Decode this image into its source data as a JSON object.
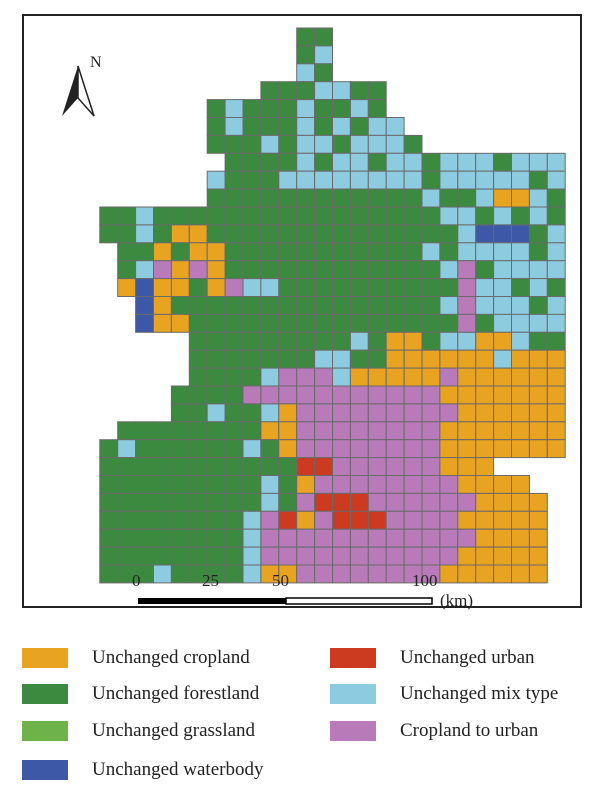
{
  "north_label": "N",
  "scale_bar": {
    "ticks": [
      "0",
      "25",
      "50",
      "100"
    ],
    "unit": "(km)"
  },
  "colors": {
    "cropland": "#e8a321",
    "forest": "#3c8a3f",
    "grassland": "#6db34a",
    "water": "#3e58a8",
    "urban": "#cc3a1f",
    "mix": "#8ccbe0",
    "crop_to_urban": "#b87ab8",
    "cell_border": "#6a6a6a"
  },
  "legend": [
    {
      "label": "Unchanged cropland",
      "color": "#e8a321"
    },
    {
      "label": "Unchanged urban",
      "color": "#cc3a1f"
    },
    {
      "label": "Unchanged forestland",
      "color": "#3c8a3f"
    },
    {
      "label": "Unchanged mix type",
      "color": "#8ccbe0"
    },
    {
      "label": "Unchanged grassland",
      "color": "#6db34a"
    },
    {
      "label": "Cropland to urban",
      "color": "#b87ab8"
    },
    {
      "label": "Unchanged waterbody",
      "color": "#3e58a8"
    }
  ],
  "grid": {
    "legend_codes": {
      "C": "Unchanged cropland",
      "F": "Unchanged forestland",
      "G": "Unchanged grassland",
      "W": "Unchanged waterbody",
      "U": "Unchanged urban",
      "M": "Unchanged mix type",
      "P": "Cropland to urban",
      ".": "no data"
    },
    "rows": [
      ".............FF..............",
      ".............FM..............",
      ".............MF..............",
      "...........FFFMMFF...........",
      "........FMFFFMFFMF...........",
      "........FMFFFMFMFMM..........",
      "........FFFMFMMFMMMF.........",
      ".........FFFFMFMMFMMFMMMFMMMF",
      "........MFFFMMMMMMMMFMMMMMFMF",
      "........FFFFFFFFFFFFMFFMCCMFF",
      "..FFMFFFFFFFFFFFFFFFFMMFMFMF.",
      "..FFMFCCFFFFFFFFFFFFFFMWWWFMF",
      "...FFCFCCFFFFFFFFFFFMFMMMMFMF",
      "...FMPCPCFFFFFFFFFFFFMPFMMMMM",
      "...CWCCFCPMMFFFFFFFFFFPMMFMFM",
      "....WCFFFFFFFFFFFFFFFMPMMMFMF",
      "....WCCFFFFFFFFFFFFFFFPFMMMMFMMF",
      ".......FFFFFFFFFMFCCFMMCCMFFMMF",
      ".......FFFFFFFMMFFCCCCCCMCCCMCMM",
      ".......FFFFMPPPMCCCCCPCCCCCCMFF.",
      "......FFFFPPPPPPPPPPPCCCCCCCFF..",
      "......FFMFFMCPPPPPPPPPCCCCCCCF..",
      "...FFFFFFFFCCPPPPPPPPCCCCCCCCC..",
      "..FMFFFFFFMFCPPPPPPPPCCCCCCC....",
      "..FFFFFFFFFFFUUPPPPPPCCC........",
      "..FFFFFFFFFMFCPPPPPPPPCCCC......",
      "..FFFFFFFFFMFPUUUPPPPPPCCCC.....",
      "..FFFFFFFFMPUCPUUUPPPPCCCCC.....",
      "..FFFFFFFFMPPPPPPPPPPPPCCCC.....",
      "..FFFFFFFFMPPPPPPPPPPPCCCCC.....",
      "..FFFMFFFFMCCPPPPPPPPCCCCCC.....",
      "..FMMFFFFFMCCMPPPPPPCCCCCCC.....",
      "..FFFMFFFFPPCPPPPPPPCCCCCCC.....",
      "..FFFFFFFMPPPPPPPPPCCCCCC.......",
      "..FFFFFFFFPPPMPPCCCCCCCC........",
      "..FFFFFMFCCCCCCCCCCCCCC.........",
      "..FFFFFMCCCCCCCCCCCCCC..........",
      "......MMCCCCCCMCCCCCC...........",
      "......CCC.......MCCC............"
    ]
  }
}
